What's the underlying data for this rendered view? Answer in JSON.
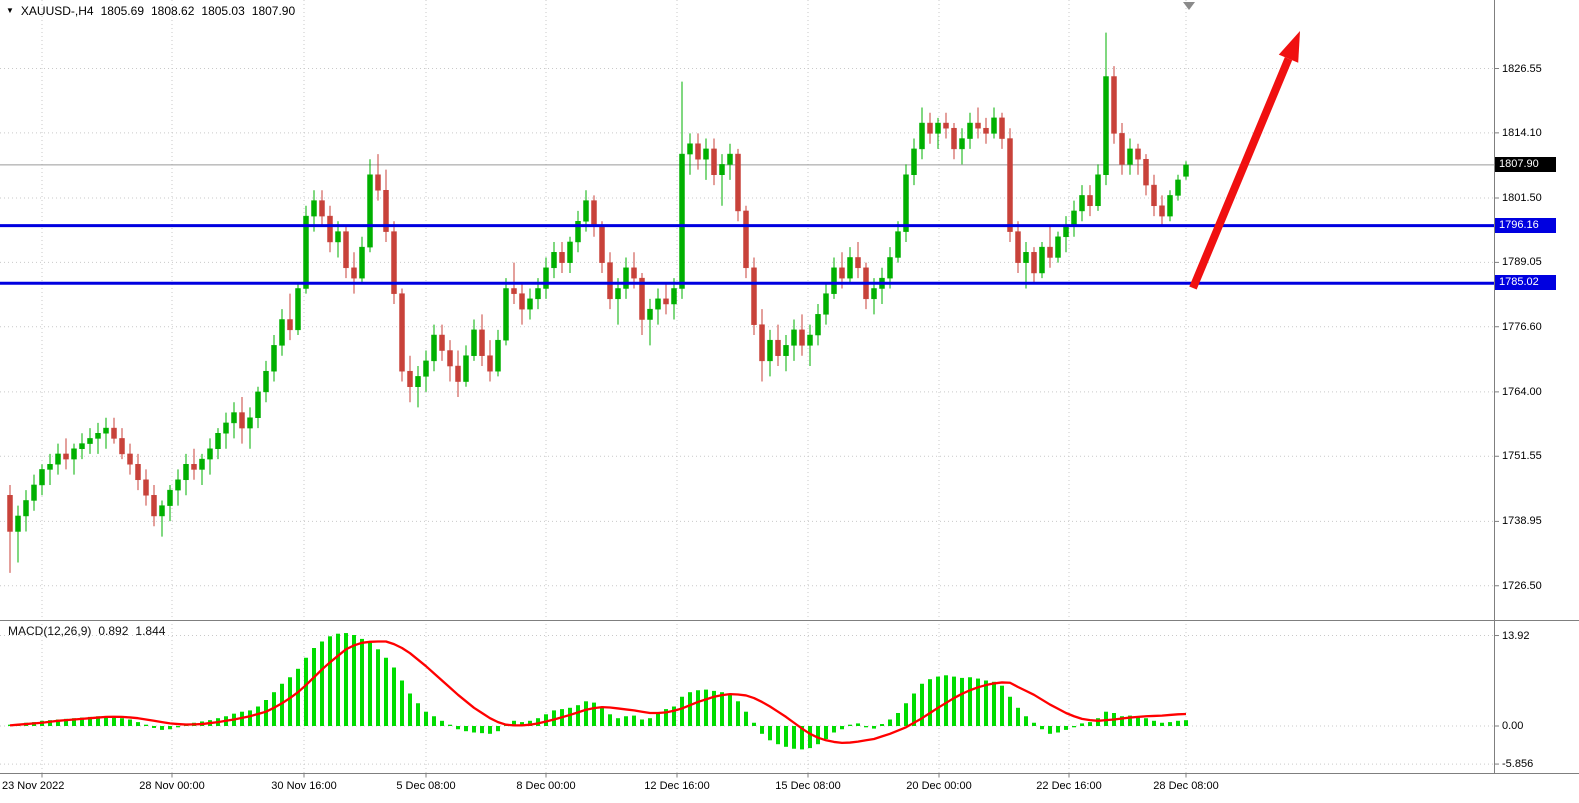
{
  "icons": {
    "symbol_marker": "▼"
  },
  "symbol_bar": {
    "symbol_label": "XAUUSD-,H4",
    "open": "1805.69",
    "high": "1808.62",
    "low": "1805.03",
    "close": "1807.90"
  },
  "price_axis": {
    "ticks": [
      "1826.55",
      "1814.10",
      "1801.50",
      "1789.05",
      "1776.60",
      "1764.00",
      "1751.55",
      "1738.95",
      "1726.50"
    ],
    "current_price_label": "1807.90",
    "level_labels": [
      "1796.16",
      "1785.02"
    ]
  },
  "time_axis": {
    "labels": [
      "23 Nov 2022",
      "28 Nov 00:00",
      "30 Nov 16:00",
      "5 Dec 08:00",
      "8 Dec 00:00",
      "12 Dec 16:00",
      "15 Dec 08:00",
      "20 Dec 00:00",
      "22 Dec 16:00",
      "28 Dec 08:00"
    ]
  },
  "macd_panel": {
    "label": "MACD(12,26,9)",
    "macd_value": "0.892",
    "signal_value": "1.844",
    "ticks": [
      "13.92",
      "0.00",
      "-5.856"
    ]
  },
  "colors": {
    "bull": "#00B000",
    "bear": "#C8423A",
    "grid": "#c9c9c9",
    "separator": "#7f7f7f",
    "level_line": "#0000E0",
    "current_price_line": "#9a9a9a",
    "current_price_bg": "#000000",
    "level_bg": "#0000E0",
    "histogram": "#00DC00",
    "signal_line": "#FF0000",
    "arrow": "#F01010"
  },
  "chart_data": {
    "type": "candlestick",
    "symbol": "XAUUSD-",
    "timeframe": "H4",
    "title": "XAUUSD-,H4 1805.69 1808.62 1805.03 1807.90",
    "y_ticks": [
      1826.55,
      1814.1,
      1801.5,
      1789.05,
      1776.6,
      1764.0,
      1751.55,
      1738.95,
      1726.5
    ],
    "x_tick_labels": [
      "23 Nov 2022",
      "28 Nov 00:00",
      "30 Nov 16:00",
      "5 Dec 08:00",
      "8 Dec 00:00",
      "12 Dec 16:00",
      "15 Dec 08:00",
      "20 Dec 00:00",
      "22 Dec 16:00",
      "28 Dec 08:00"
    ],
    "current_price": 1807.9,
    "horizontal_levels": [
      1796.16,
      1785.02
    ],
    "last_bar": {
      "open": 1805.69,
      "high": 1808.62,
      "low": 1805.03,
      "close": 1807.9
    },
    "annotations": [
      {
        "type": "arrow",
        "direction": "up-right",
        "color": "#F01010",
        "meaning": "bullish projection toward resistance"
      }
    ],
    "candles": [
      [
        1744,
        1746,
        1729,
        1737
      ],
      [
        1737,
        1742,
        1731,
        1740
      ],
      [
        1740,
        1745,
        1737,
        1743
      ],
      [
        1743,
        1748,
        1741,
        1746
      ],
      [
        1746,
        1750,
        1744,
        1749
      ],
      [
        1749,
        1752,
        1746,
        1750
      ],
      [
        1750,
        1754,
        1748,
        1752
      ],
      [
        1752,
        1755,
        1749,
        1751
      ],
      [
        1751,
        1754,
        1748,
        1753
      ],
      [
        1753,
        1756,
        1751,
        1754
      ],
      [
        1754,
        1757,
        1752,
        1755
      ],
      [
        1755,
        1758,
        1752,
        1756
      ],
      [
        1756,
        1759,
        1753,
        1757
      ],
      [
        1757,
        1759,
        1754,
        1755
      ],
      [
        1755,
        1757,
        1751,
        1752
      ],
      [
        1752,
        1754,
        1748,
        1750
      ],
      [
        1750,
        1752,
        1745,
        1747
      ],
      [
        1747,
        1749,
        1742,
        1744
      ],
      [
        1744,
        1746,
        1738,
        1740
      ],
      [
        1740,
        1743,
        1736,
        1742
      ],
      [
        1742,
        1746,
        1739,
        1745
      ],
      [
        1745,
        1749,
        1742,
        1747
      ],
      [
        1747,
        1752,
        1744,
        1750
      ],
      [
        1750,
        1753,
        1747,
        1749
      ],
      [
        1749,
        1752,
        1746,
        1751
      ],
      [
        1751,
        1755,
        1748,
        1753
      ],
      [
        1753,
        1757,
        1751,
        1756
      ],
      [
        1756,
        1760,
        1753,
        1758
      ],
      [
        1758,
        1762,
        1755,
        1760
      ],
      [
        1760,
        1763,
        1754,
        1757
      ],
      [
        1757,
        1761,
        1753,
        1759
      ],
      [
        1759,
        1765,
        1757,
        1764
      ],
      [
        1764,
        1770,
        1762,
        1768
      ],
      [
        1768,
        1775,
        1766,
        1773
      ],
      [
        1773,
        1780,
        1771,
        1778
      ],
      [
        1778,
        1783,
        1774,
        1776
      ],
      [
        1776,
        1785,
        1775,
        1784
      ],
      [
        1784,
        1800,
        1783,
        1798
      ],
      [
        1798,
        1803,
        1795,
        1801
      ],
      [
        1801,
        1803,
        1796,
        1798
      ],
      [
        1798,
        1800,
        1791,
        1793
      ],
      [
        1793,
        1797,
        1790,
        1795
      ],
      [
        1795,
        1796,
        1786,
        1788
      ],
      [
        1788,
        1791,
        1783,
        1786
      ],
      [
        1786,
        1794,
        1785,
        1792
      ],
      [
        1792,
        1809,
        1791,
        1806
      ],
      [
        1806,
        1810,
        1801,
        1803
      ],
      [
        1803,
        1807,
        1793,
        1795
      ],
      [
        1795,
        1797,
        1781,
        1783
      ],
      [
        1783,
        1784,
        1766,
        1768
      ],
      [
        1768,
        1771,
        1762,
        1765
      ],
      [
        1765,
        1769,
        1761,
        1767
      ],
      [
        1767,
        1772,
        1764,
        1770
      ],
      [
        1770,
        1777,
        1768,
        1775
      ],
      [
        1775,
        1777,
        1770,
        1772
      ],
      [
        1772,
        1774,
        1766,
        1769
      ],
      [
        1769,
        1772,
        1763,
        1766
      ],
      [
        1766,
        1773,
        1765,
        1771
      ],
      [
        1771,
        1778,
        1770,
        1776
      ],
      [
        1776,
        1779,
        1769,
        1771
      ],
      [
        1771,
        1774,
        1766,
        1768
      ],
      [
        1768,
        1776,
        1767,
        1774
      ],
      [
        1774,
        1786,
        1773,
        1784
      ],
      [
        1784,
        1789,
        1781,
        1783
      ],
      [
        1783,
        1785,
        1777,
        1780
      ],
      [
        1780,
        1784,
        1778,
        1782
      ],
      [
        1782,
        1786,
        1780,
        1784
      ],
      [
        1784,
        1790,
        1782,
        1788
      ],
      [
        1788,
        1793,
        1786,
        1791
      ],
      [
        1791,
        1793,
        1787,
        1789
      ],
      [
        1789,
        1794,
        1787,
        1793
      ],
      [
        1793,
        1799,
        1791,
        1797
      ],
      [
        1797,
        1803,
        1795,
        1801
      ],
      [
        1801,
        1802,
        1794,
        1796
      ],
      [
        1796,
        1797,
        1787,
        1789
      ],
      [
        1789,
        1791,
        1780,
        1782
      ],
      [
        1782,
        1786,
        1777,
        1784
      ],
      [
        1784,
        1790,
        1782,
        1788
      ],
      [
        1788,
        1791,
        1784,
        1786
      ],
      [
        1786,
        1787,
        1775,
        1778
      ],
      [
        1778,
        1782,
        1773,
        1780
      ],
      [
        1780,
        1784,
        1777,
        1782
      ],
      [
        1782,
        1785,
        1779,
        1781
      ],
      [
        1781,
        1786,
        1778,
        1784
      ],
      [
        1784,
        1824,
        1782,
        1810
      ],
      [
        1810,
        1814,
        1806,
        1812
      ],
      [
        1812,
        1814,
        1807,
        1809
      ],
      [
        1809,
        1813,
        1805,
        1811
      ],
      [
        1811,
        1813,
        1804,
        1806
      ],
      [
        1806,
        1810,
        1800,
        1808
      ],
      [
        1808,
        1812,
        1805,
        1810
      ],
      [
        1810,
        1811,
        1797,
        1799
      ],
      [
        1799,
        1800,
        1786,
        1788
      ],
      [
        1788,
        1790,
        1775,
        1777
      ],
      [
        1777,
        1780,
        1766,
        1770
      ],
      [
        1770,
        1776,
        1767,
        1774
      ],
      [
        1774,
        1777,
        1769,
        1771
      ],
      [
        1771,
        1775,
        1768,
        1773
      ],
      [
        1773,
        1778,
        1770,
        1776
      ],
      [
        1776,
        1779,
        1771,
        1773
      ],
      [
        1773,
        1777,
        1769,
        1775
      ],
      [
        1775,
        1781,
        1773,
        1779
      ],
      [
        1779,
        1785,
        1777,
        1783
      ],
      [
        1783,
        1790,
        1782,
        1788
      ],
      [
        1788,
        1791,
        1784,
        1786
      ],
      [
        1786,
        1792,
        1785,
        1790
      ],
      [
        1790,
        1793,
        1786,
        1788
      ],
      [
        1788,
        1789,
        1780,
        1782
      ],
      [
        1782,
        1786,
        1779,
        1784
      ],
      [
        1784,
        1788,
        1781,
        1786
      ],
      [
        1786,
        1792,
        1784,
        1790
      ],
      [
        1790,
        1797,
        1789,
        1795
      ],
      [
        1795,
        1808,
        1793,
        1806
      ],
      [
        1806,
        1813,
        1804,
        1811
      ],
      [
        1811,
        1819,
        1809,
        1816
      ],
      [
        1816,
        1818,
        1812,
        1814
      ],
      [
        1814,
        1817,
        1811,
        1816
      ],
      [
        1816,
        1818,
        1813,
        1815
      ],
      [
        1815,
        1816,
        1809,
        1811
      ],
      [
        1811,
        1815,
        1808,
        1813
      ],
      [
        1813,
        1818,
        1811,
        1816
      ],
      [
        1816,
        1819,
        1813,
        1815
      ],
      [
        1815,
        1817,
        1812,
        1814
      ],
      [
        1814,
        1819,
        1813,
        1817
      ],
      [
        1817,
        1818,
        1811,
        1813
      ],
      [
        1813,
        1815,
        1793,
        1795
      ],
      [
        1795,
        1797,
        1787,
        1789
      ],
      [
        1789,
        1793,
        1784,
        1791
      ],
      [
        1791,
        1792,
        1785,
        1787
      ],
      [
        1787,
        1793,
        1786,
        1792
      ],
      [
        1792,
        1796,
        1788,
        1790
      ],
      [
        1790,
        1795,
        1789,
        1794
      ],
      [
        1794,
        1798,
        1791,
        1796
      ],
      [
        1796,
        1801,
        1794,
        1799
      ],
      [
        1799,
        1804,
        1797,
        1802
      ],
      [
        1802,
        1804,
        1798,
        1800
      ],
      [
        1800,
        1808,
        1799,
        1806
      ],
      [
        1806,
        1833.5,
        1804,
        1825
      ],
      [
        1825,
        1827,
        1812,
        1814
      ],
      [
        1814,
        1816,
        1806,
        1808
      ],
      [
        1808,
        1813,
        1806,
        1811
      ],
      [
        1811,
        1812,
        1806,
        1809
      ],
      [
        1809,
        1810,
        1802,
        1804
      ],
      [
        1804,
        1806,
        1798,
        1800
      ],
      [
        1800,
        1802,
        1796,
        1798
      ],
      [
        1798,
        1803,
        1797,
        1802
      ],
      [
        1802,
        1806,
        1801,
        1805
      ],
      [
        1805.69,
        1808.62,
        1805.03,
        1807.9
      ]
    ],
    "macd": {
      "type": "bar+line",
      "params": [
        12,
        26,
        9
      ],
      "current_macd": 0.892,
      "current_signal": 1.844,
      "y_ticks": [
        13.92,
        0.0,
        -5.856
      ],
      "histogram": [
        0.2,
        0.3,
        0.5,
        0.6,
        0.8,
        0.9,
        1.0,
        1.1,
        1.2,
        1.3,
        1.4,
        1.5,
        1.5,
        1.4,
        1.2,
        1.0,
        0.6,
        0.2,
        -0.3,
        -0.6,
        -0.5,
        -0.2,
        0.2,
        0.5,
        0.7,
        0.9,
        1.2,
        1.5,
        1.9,
        2.2,
        2.4,
        3.0,
        4.0,
        5.2,
        6.5,
        7.5,
        8.8,
        10.5,
        12.0,
        13.0,
        13.8,
        14.2,
        14.3,
        14.0,
        13.4,
        12.8,
        11.8,
        10.5,
        9.0,
        7.0,
        5.0,
        3.5,
        2.2,
        1.5,
        0.8,
        0.2,
        -0.5,
        -0.8,
        -1.0,
        -1.1,
        -1.2,
        -0.8,
        0.2,
        0.8,
        0.6,
        0.8,
        1.2,
        1.8,
        2.4,
        2.6,
        2.8,
        3.2,
        3.8,
        3.6,
        2.8,
        1.8,
        1.2,
        1.5,
        1.6,
        1.0,
        1.2,
        2.0,
        2.6,
        3.0,
        4.5,
        5.2,
        5.5,
        5.6,
        5.4,
        5.2,
        5.0,
        3.8,
        2.2,
        0.5,
        -1.2,
        -2.2,
        -2.8,
        -3.2,
        -3.5,
        -3.6,
        -3.4,
        -2.8,
        -2.0,
        -1.0,
        -0.5,
        0.2,
        0.4,
        -0.2,
        -0.4,
        0.3,
        1.0,
        2.0,
        3.5,
        5.0,
        6.5,
        7.2,
        7.6,
        7.8,
        7.6,
        7.4,
        7.5,
        7.3,
        7.0,
        6.8,
        6.2,
        4.5,
        2.8,
        1.5,
        0.5,
        -0.5,
        -1.2,
        -1.0,
        -0.6,
        -0.2,
        0.4,
        0.6,
        1.2,
        2.2,
        2.0,
        1.5,
        1.6,
        1.5,
        1.2,
        0.8,
        0.5,
        0.6,
        0.8,
        0.892
      ],
      "signal": [
        0.1,
        0.2,
        0.3,
        0.4,
        0.5,
        0.65,
        0.8,
        0.9,
        1.0,
        1.1,
        1.2,
        1.3,
        1.4,
        1.42,
        1.4,
        1.32,
        1.2,
        1.0,
        0.8,
        0.6,
        0.4,
        0.3,
        0.22,
        0.25,
        0.3,
        0.45,
        0.6,
        0.8,
        1.0,
        1.25,
        1.5,
        1.85,
        2.2,
        2.8,
        3.5,
        4.3,
        5.2,
        6.3,
        7.5,
        8.7,
        9.8,
        10.8,
        11.8,
        12.4,
        12.8,
        12.95,
        13.0,
        13.0,
        12.6,
        12.0,
        11.2,
        10.2,
        9.2,
        8.1,
        7.0,
        5.9,
        4.8,
        3.8,
        2.8,
        2.0,
        1.2,
        0.6,
        0.2,
        0.1,
        0.1,
        0.2,
        0.4,
        0.7,
        1.0,
        1.35,
        1.7,
        2.1,
        2.5,
        2.75,
        2.9,
        2.85,
        2.7,
        2.55,
        2.4,
        2.2,
        2.0,
        2.0,
        2.1,
        2.35,
        2.7,
        3.2,
        3.7,
        4.1,
        4.5,
        4.75,
        4.9,
        4.85,
        4.7,
        4.3,
        3.7,
        3.0,
        2.2,
        1.4,
        0.5,
        -0.4,
        -1.2,
        -1.8,
        -2.2,
        -2.45,
        -2.6,
        -2.55,
        -2.4,
        -2.2,
        -2.0,
        -1.6,
        -1.2,
        -0.7,
        -0.2,
        0.5,
        1.2,
        2.0,
        2.8,
        3.55,
        4.3,
        4.95,
        5.5,
        5.95,
        6.3,
        6.55,
        6.7,
        6.65,
        6.0,
        5.4,
        4.8,
        4.05,
        3.3,
        2.65,
        2.0,
        1.5,
        1.1,
        0.9,
        0.8,
        0.9,
        1.0,
        1.15,
        1.3,
        1.4,
        1.5,
        1.55,
        1.6,
        1.7,
        1.8,
        1.844
      ]
    }
  }
}
